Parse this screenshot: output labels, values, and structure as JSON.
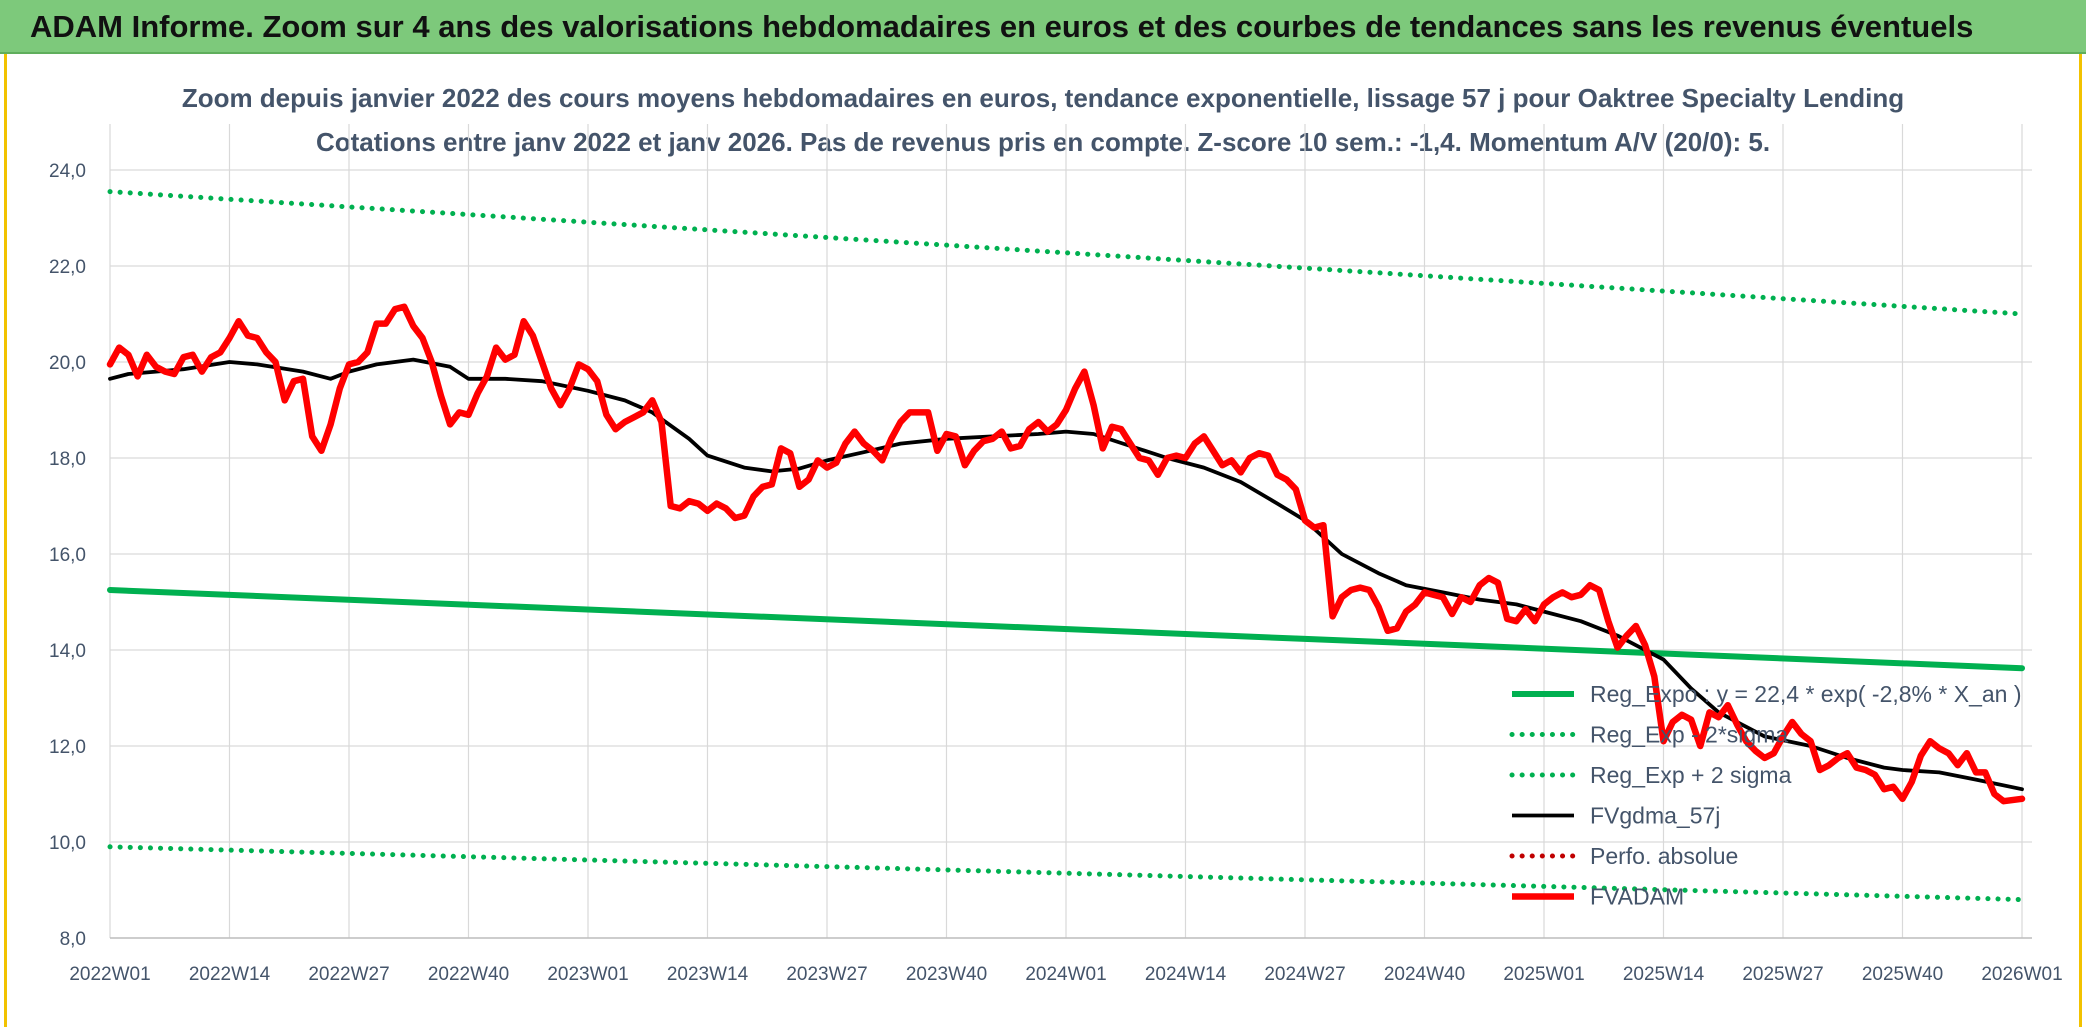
{
  "header": {
    "title": "ADAM Informe. Zoom sur 4 ans des valorisations hebdomadaires en euros et des courbes de tendances sans les revenus éventuels"
  },
  "chart_data": {
    "type": "line",
    "title": "Zoom depuis janvier 2022 des cours moyens hebdomadaires en euros, tendance exponentielle, lissage 57 j pour Oaktree Specialty Lending",
    "subtitle": "Cotations entre janv 2022 et janv 2026. Pas de revenus pris en compte. Z-score 10 sem.: -1,4. Momentum A/V (20/0): 5.",
    "xlabel": "",
    "ylabel": "",
    "ylim": [
      8,
      24
    ],
    "yticks": [
      "8,0",
      "10,0",
      "12,0",
      "14,0",
      "16,0",
      "18,0",
      "20,0",
      "22,0",
      "24,0"
    ],
    "xlim": [
      "2022W01",
      "2026W01"
    ],
    "categories": [
      "2022W01",
      "2022W14",
      "2022W27",
      "2022W40",
      "2023W01",
      "2023W14",
      "2023W27",
      "2023W40",
      "2024W01",
      "2024W14",
      "2024W27",
      "2024W40",
      "2025W01",
      "2025W14",
      "2025W27",
      "2025W40",
      "2026W01"
    ],
    "grid": true,
    "legend_position": "bottom-right",
    "colors": {
      "trend": "#00b050",
      "band": "#00b050",
      "smooth": "#000000",
      "perf": "#c00000",
      "price": "#ff0000",
      "grid": "#d9d9d9",
      "axis_text": "#44546a"
    },
    "series": [
      {
        "name": "Reg_Expo : y = 22,4 * exp( -2,8% *  X_an )",
        "style": "solid-thick",
        "color": "#00b050",
        "points": [
          [
            "2022W01",
            15.25
          ],
          [
            "2026W01",
            13.62
          ]
        ]
      },
      {
        "name": "Reg_Exp - 2*sigma",
        "style": "dotted",
        "color": "#00b050",
        "points": [
          [
            "2022W01",
            9.9
          ],
          [
            "2026W01",
            8.8
          ]
        ]
      },
      {
        "name": "Reg_Exp + 2 sigma",
        "style": "dotted",
        "color": "#00b050",
        "points": [
          [
            "2022W01",
            23.55
          ],
          [
            "2026W01",
            21.0
          ]
        ]
      },
      {
        "name": "FVgdma_57j",
        "style": "solid",
        "color": "#000000",
        "points": [
          [
            "2022W01",
            19.65
          ],
          [
            "2022W03",
            19.75
          ],
          [
            "2022W06",
            19.8
          ],
          [
            "2022W09",
            19.85
          ],
          [
            "2022W14",
            20.0
          ],
          [
            "2022W17",
            19.95
          ],
          [
            "2022W22",
            19.8
          ],
          [
            "2022W25",
            19.65
          ],
          [
            "2022W27",
            19.8
          ],
          [
            "2022W30",
            19.95
          ],
          [
            "2022W34",
            20.05
          ],
          [
            "2022W38",
            19.9
          ],
          [
            "2022W40",
            19.65
          ],
          [
            "2022W44",
            19.65
          ],
          [
            "2022W48",
            19.6
          ],
          [
            "2023W01",
            19.4
          ],
          [
            "2023W05",
            19.2
          ],
          [
            "2023W08",
            18.95
          ],
          [
            "2023W12",
            18.4
          ],
          [
            "2023W14",
            18.05
          ],
          [
            "2023W18",
            17.8
          ],
          [
            "2023W21",
            17.72
          ],
          [
            "2023W24",
            17.78
          ],
          [
            "2023W27",
            17.95
          ],
          [
            "2023W31",
            18.12
          ],
          [
            "2023W35",
            18.3
          ],
          [
            "2023W40",
            18.4
          ],
          [
            "2023W45",
            18.45
          ],
          [
            "2023W50",
            18.5
          ],
          [
            "2024W01",
            18.55
          ],
          [
            "2024W04",
            18.5
          ],
          [
            "2024W08",
            18.25
          ],
          [
            "2024W12",
            18.0
          ],
          [
            "2024W16",
            17.8
          ],
          [
            "2024W20",
            17.5
          ],
          [
            "2024W24",
            17.05
          ],
          [
            "2024W27",
            16.7
          ],
          [
            "2024W31",
            16.0
          ],
          [
            "2024W35",
            15.6
          ],
          [
            "2024W38",
            15.35
          ],
          [
            "2024W42",
            15.2
          ],
          [
            "2024W46",
            15.05
          ],
          [
            "2024W50",
            14.95
          ],
          [
            "2025W01",
            14.8
          ],
          [
            "2025W05",
            14.6
          ],
          [
            "2025W09",
            14.3
          ],
          [
            "2025W14",
            13.8
          ],
          [
            "2025W17",
            13.2
          ],
          [
            "2025W20",
            12.7
          ],
          [
            "2025W25",
            12.2
          ],
          [
            "2025W30",
            12.0
          ],
          [
            "2025W34",
            11.75
          ],
          [
            "2025W38",
            11.55
          ],
          [
            "2025W40",
            11.5
          ],
          [
            "2025W44",
            11.45
          ],
          [
            "2025W48",
            11.3
          ],
          [
            "2026W01",
            11.1
          ]
        ]
      },
      {
        "name": "Perfo. absolue",
        "style": "dotted",
        "color": "#c00000",
        "points": []
      },
      {
        "name": "FVADAM",
        "style": "solid-thick",
        "color": "#ff0000",
        "points": [
          [
            "2022W01",
            19.95
          ],
          [
            "2022W02",
            20.3
          ],
          [
            "2022W03",
            20.15
          ],
          [
            "2022W04",
            19.7
          ],
          [
            "2022W05",
            20.15
          ],
          [
            "2022W06",
            19.9
          ],
          [
            "2022W07",
            19.8
          ],
          [
            "2022W08",
            19.75
          ],
          [
            "2022W09",
            20.1
          ],
          [
            "2022W10",
            20.15
          ],
          [
            "2022W11",
            19.8
          ],
          [
            "2022W12",
            20.1
          ],
          [
            "2022W13",
            20.2
          ],
          [
            "2022W14",
            20.5
          ],
          [
            "2022W15",
            20.85
          ],
          [
            "2022W16",
            20.55
          ],
          [
            "2022W17",
            20.5
          ],
          [
            "2022W18",
            20.2
          ],
          [
            "2022W19",
            20.0
          ],
          [
            "2022W20",
            19.2
          ],
          [
            "2022W21",
            19.6
          ],
          [
            "2022W22",
            19.65
          ],
          [
            "2022W23",
            18.45
          ],
          [
            "2022W24",
            18.15
          ],
          [
            "2022W25",
            18.7
          ],
          [
            "2022W26",
            19.45
          ],
          [
            "2022W27",
            19.95
          ],
          [
            "2022W28",
            20.0
          ],
          [
            "2022W29",
            20.2
          ],
          [
            "2022W30",
            20.8
          ],
          [
            "2022W31",
            20.8
          ],
          [
            "2022W32",
            21.1
          ],
          [
            "2022W33",
            21.15
          ],
          [
            "2022W34",
            20.75
          ],
          [
            "2022W35",
            20.5
          ],
          [
            "2022W36",
            20.0
          ],
          [
            "2022W37",
            19.3
          ],
          [
            "2022W38",
            18.7
          ],
          [
            "2022W39",
            18.95
          ],
          [
            "2022W40",
            18.9
          ],
          [
            "2022W41",
            19.35
          ],
          [
            "2022W42",
            19.7
          ],
          [
            "2022W43",
            20.3
          ],
          [
            "2022W44",
            20.05
          ],
          [
            "2022W45",
            20.15
          ],
          [
            "2022W46",
            20.85
          ],
          [
            "2022W47",
            20.55
          ],
          [
            "2022W48",
            20.0
          ],
          [
            "2022W49",
            19.45
          ],
          [
            "2022W50",
            19.1
          ],
          [
            "2022W51",
            19.45
          ],
          [
            "2022W52",
            19.95
          ],
          [
            "2023W01",
            19.85
          ],
          [
            "2023W02",
            19.6
          ],
          [
            "2023W03",
            18.9
          ],
          [
            "2023W04",
            18.6
          ],
          [
            "2023W05",
            18.75
          ],
          [
            "2023W06",
            18.85
          ],
          [
            "2023W07",
            18.95
          ],
          [
            "2023W08",
            19.2
          ],
          [
            "2023W09",
            18.75
          ],
          [
            "2023W10",
            17.0
          ],
          [
            "2023W11",
            16.95
          ],
          [
            "2023W12",
            17.1
          ],
          [
            "2023W13",
            17.05
          ],
          [
            "2023W14",
            16.9
          ],
          [
            "2023W15",
            17.05
          ],
          [
            "2023W16",
            16.95
          ],
          [
            "2023W17",
            16.75
          ],
          [
            "2023W18",
            16.8
          ],
          [
            "2023W19",
            17.2
          ],
          [
            "2023W20",
            17.4
          ],
          [
            "2023W21",
            17.45
          ],
          [
            "2023W22",
            18.2
          ],
          [
            "2023W23",
            18.1
          ],
          [
            "2023W24",
            17.4
          ],
          [
            "2023W25",
            17.55
          ],
          [
            "2023W26",
            17.95
          ],
          [
            "2023W27",
            17.8
          ],
          [
            "2023W28",
            17.9
          ],
          [
            "2023W29",
            18.3
          ],
          [
            "2023W30",
            18.55
          ],
          [
            "2023W31",
            18.3
          ],
          [
            "2023W32",
            18.15
          ],
          [
            "2023W33",
            17.95
          ],
          [
            "2023W34",
            18.4
          ],
          [
            "2023W35",
            18.75
          ],
          [
            "2023W36",
            18.95
          ],
          [
            "2023W37",
            18.95
          ],
          [
            "2023W38",
            18.95
          ],
          [
            "2023W39",
            18.15
          ],
          [
            "2023W40",
            18.5
          ],
          [
            "2023W41",
            18.45
          ],
          [
            "2023W42",
            17.85
          ],
          [
            "2023W43",
            18.15
          ],
          [
            "2023W44",
            18.35
          ],
          [
            "2023W45",
            18.4
          ],
          [
            "2023W46",
            18.55
          ],
          [
            "2023W47",
            18.2
          ],
          [
            "2023W48",
            18.25
          ],
          [
            "2023W49",
            18.6
          ],
          [
            "2023W50",
            18.75
          ],
          [
            "2023W51",
            18.55
          ],
          [
            "2023W52",
            18.7
          ],
          [
            "2024W01",
            19.0
          ],
          [
            "2024W02",
            19.45
          ],
          [
            "2024W03",
            19.8
          ],
          [
            "2024W04",
            19.1
          ],
          [
            "2024W05",
            18.2
          ],
          [
            "2024W06",
            18.65
          ],
          [
            "2024W07",
            18.6
          ],
          [
            "2024W08",
            18.3
          ],
          [
            "2024W09",
            18.0
          ],
          [
            "2024W10",
            17.95
          ],
          [
            "2024W11",
            17.65
          ],
          [
            "2024W12",
            18.0
          ],
          [
            "2024W13",
            18.05
          ],
          [
            "2024W14",
            18.0
          ],
          [
            "2024W15",
            18.3
          ],
          [
            "2024W16",
            18.45
          ],
          [
            "2024W17",
            18.15
          ],
          [
            "2024W18",
            17.85
          ],
          [
            "2024W19",
            17.95
          ],
          [
            "2024W20",
            17.7
          ],
          [
            "2024W21",
            18.0
          ],
          [
            "2024W22",
            18.1
          ],
          [
            "2024W23",
            18.05
          ],
          [
            "2024W24",
            17.65
          ],
          [
            "2024W25",
            17.55
          ],
          [
            "2024W26",
            17.35
          ],
          [
            "2024W27",
            16.7
          ],
          [
            "2024W28",
            16.55
          ],
          [
            "2024W29",
            16.6
          ],
          [
            "2024W30",
            14.7
          ],
          [
            "2024W31",
            15.1
          ],
          [
            "2024W32",
            15.25
          ],
          [
            "2024W33",
            15.3
          ],
          [
            "2024W34",
            15.25
          ],
          [
            "2024W35",
            14.9
          ],
          [
            "2024W36",
            14.4
          ],
          [
            "2024W37",
            14.45
          ],
          [
            "2024W38",
            14.8
          ],
          [
            "2024W39",
            14.95
          ],
          [
            "2024W40",
            15.2
          ],
          [
            "2024W41",
            15.15
          ],
          [
            "2024W42",
            15.1
          ],
          [
            "2024W43",
            14.75
          ],
          [
            "2024W44",
            15.1
          ],
          [
            "2024W45",
            15.0
          ],
          [
            "2024W46",
            15.35
          ],
          [
            "2024W47",
            15.5
          ],
          [
            "2024W48",
            15.4
          ],
          [
            "2024W49",
            14.65
          ],
          [
            "2024W50",
            14.6
          ],
          [
            "2024W51",
            14.85
          ],
          [
            "2024W52",
            14.6
          ],
          [
            "2025W01",
            14.95
          ],
          [
            "2025W02",
            15.1
          ],
          [
            "2025W03",
            15.2
          ],
          [
            "2025W04",
            15.1
          ],
          [
            "2025W05",
            15.15
          ],
          [
            "2025W06",
            15.35
          ],
          [
            "2025W07",
            15.25
          ],
          [
            "2025W08",
            14.6
          ],
          [
            "2025W09",
            14.05
          ],
          [
            "2025W10",
            14.3
          ],
          [
            "2025W11",
            14.5
          ],
          [
            "2025W12",
            14.1
          ],
          [
            "2025W13",
            13.45
          ],
          [
            "2025W14",
            12.1
          ],
          [
            "2025W15",
            12.5
          ],
          [
            "2025W16",
            12.65
          ],
          [
            "2025W17",
            12.55
          ],
          [
            "2025W18",
            12.0
          ],
          [
            "2025W19",
            12.7
          ],
          [
            "2025W20",
            12.6
          ],
          [
            "2025W21",
            12.85
          ],
          [
            "2025W22",
            12.45
          ],
          [
            "2025W23",
            12.1
          ],
          [
            "2025W24",
            11.9
          ],
          [
            "2025W25",
            11.75
          ],
          [
            "2025W26",
            11.85
          ],
          [
            "2025W27",
            12.2
          ],
          [
            "2025W28",
            12.5
          ],
          [
            "2025W29",
            12.25
          ],
          [
            "2025W30",
            12.1
          ],
          [
            "2025W31",
            11.5
          ],
          [
            "2025W32",
            11.6
          ],
          [
            "2025W33",
            11.75
          ],
          [
            "2025W34",
            11.85
          ],
          [
            "2025W35",
            11.55
          ],
          [
            "2025W36",
            11.5
          ],
          [
            "2025W37",
            11.4
          ],
          [
            "2025W38",
            11.1
          ],
          [
            "2025W39",
            11.15
          ],
          [
            "2025W40",
            10.9
          ],
          [
            "2025W41",
            11.25
          ],
          [
            "2025W42",
            11.8
          ],
          [
            "2025W43",
            12.1
          ],
          [
            "2025W44",
            11.95
          ],
          [
            "2025W45",
            11.85
          ],
          [
            "2025W46",
            11.6
          ],
          [
            "2025W47",
            11.85
          ],
          [
            "2025W48",
            11.45
          ],
          [
            "2025W49",
            11.45
          ],
          [
            "2025W50",
            11.0
          ],
          [
            "2025W51",
            10.85
          ],
          [
            "2026W01",
            10.9
          ]
        ]
      }
    ]
  }
}
